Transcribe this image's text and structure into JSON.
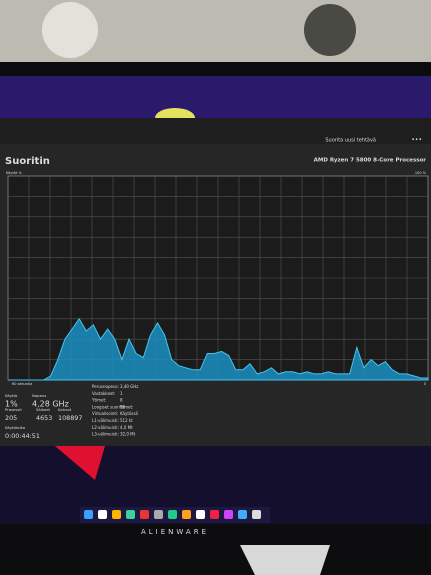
{
  "window": {
    "toolbar_action": "Suorita uusi tehtävä",
    "title": "Suoritin",
    "processor": "AMD Ryzen 7 5800 8-Core Processor"
  },
  "graph": {
    "label": "Käyttö %",
    "max_label": "100 %",
    "time_label": "60 sekuntia",
    "min_label": "0",
    "ylim": [
      0,
      100
    ],
    "values": [
      0,
      0,
      0,
      0,
      0,
      0,
      2,
      10,
      20,
      25,
      30,
      24,
      27,
      20,
      25,
      20,
      10,
      20,
      13,
      11,
      22,
      28,
      22,
      10,
      7,
      6,
      5,
      5,
      13,
      13,
      14,
      12,
      5,
      5,
      8,
      3,
      4,
      6,
      3,
      4,
      4,
      3,
      4,
      3,
      3,
      4,
      3,
      3,
      3,
      16,
      6,
      10,
      7,
      9,
      5,
      3,
      3,
      2,
      1,
      1
    ]
  },
  "stats": [
    {
      "label": "Käyttö",
      "value": "1%"
    },
    {
      "label": "Nopeus",
      "value": "4,28 GHz"
    },
    {
      "label": "Prosessit",
      "value": "205"
    },
    {
      "label": "Säikeet",
      "value": "4653"
    },
    {
      "label": "Kahvat",
      "value": "108897"
    },
    {
      "label": "Käyttöaika",
      "value": "0:00:44:51"
    }
  ],
  "details": [
    {
      "label": "Perusnopeus:",
      "value": "3,40 GHz"
    },
    {
      "label": "Vastakkeet:",
      "value": "1"
    },
    {
      "label": "Ytimet:",
      "value": "8"
    },
    {
      "label": "Loogiset suorittimet:",
      "value": "16"
    },
    {
      "label": "Virtualisointi:",
      "value": "Käytössä"
    },
    {
      "label": "L1-välimuisti:",
      "value": "512 kt"
    },
    {
      "label": "L2-välimuisti:",
      "value": "4,0 Mt"
    },
    {
      "label": "L3-välimuisti:",
      "value": "32,0 Mt"
    }
  ],
  "brand": "ALIENWARE"
}
